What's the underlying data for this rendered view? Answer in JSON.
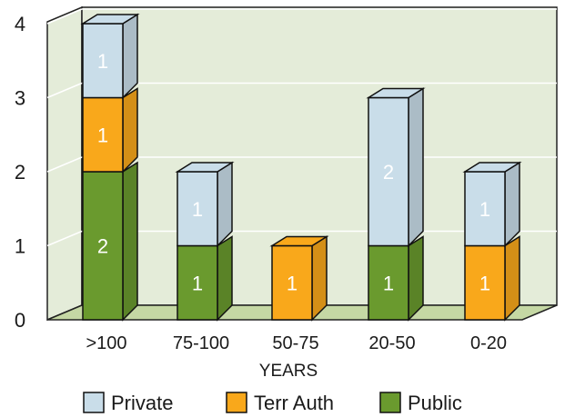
{
  "chart_data": {
    "type": "bar",
    "stacked": true,
    "three_d": true,
    "categories": [
      ">100",
      "75-100",
      "50-75",
      "20-50",
      "0-20"
    ],
    "series": [
      {
        "name": "Public",
        "values": [
          2,
          1,
          0,
          1,
          0
        ],
        "color": "#6a9a2e"
      },
      {
        "name": "Terr Auth",
        "values": [
          1,
          0,
          1,
          0,
          1
        ],
        "color": "#f9a81b"
      },
      {
        "name": "Private",
        "values": [
          1,
          1,
          0,
          2,
          1
        ],
        "color": "#c9dde9"
      }
    ],
    "xlabel": "YEARS",
    "ylabel": "",
    "ylim": [
      0,
      4
    ],
    "yticks": [
      0,
      1,
      2,
      3,
      4
    ],
    "grid": true,
    "legend_position": "bottom",
    "legend_order": [
      "Private",
      "Terr Auth",
      "Public"
    ],
    "wall_color": "#e4ecd9",
    "floor_color": "#c5d8a4"
  }
}
